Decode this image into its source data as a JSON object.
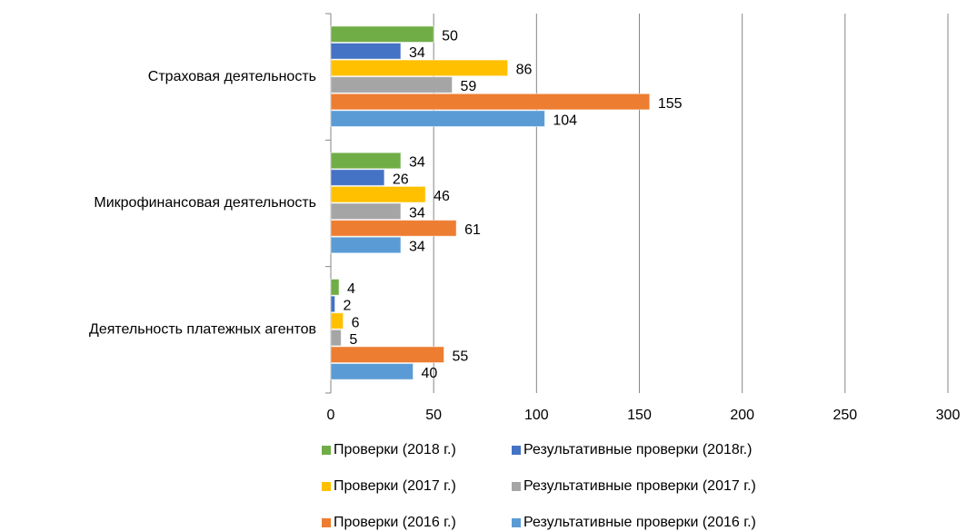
{
  "chart_data": {
    "type": "bar",
    "orientation": "horizontal",
    "categories": [
      "Страховая деятельность",
      "Микрофинансовая деятельность",
      "Деятельность платежных агентов"
    ],
    "series": [
      {
        "name": "Проверки (2018 г.)",
        "color": "#70ad47",
        "values": [
          50,
          34,
          4
        ]
      },
      {
        "name": "Результативные проверки (2018г.)",
        "color": "#4472c4",
        "values": [
          34,
          26,
          2
        ]
      },
      {
        "name": "Проверки (2017 г.)",
        "color": "#ffc000",
        "values": [
          86,
          46,
          6
        ]
      },
      {
        "name": "Результативные проверки (2017 г.)",
        "color": "#a5a5a5",
        "values": [
          59,
          34,
          5
        ]
      },
      {
        "name": "Проверки (2016 г.)",
        "color": "#ed7d31",
        "values": [
          155,
          61,
          55
        ]
      },
      {
        "name": "Результативные проверки (2016 г.)",
        "color": "#5b9bd5",
        "values": [
          104,
          34,
          40
        ]
      }
    ],
    "xlim": [
      0,
      300
    ],
    "xticks": [
      0,
      50,
      100,
      150,
      200,
      250,
      300
    ],
    "grid": true,
    "legend": "bottom"
  }
}
